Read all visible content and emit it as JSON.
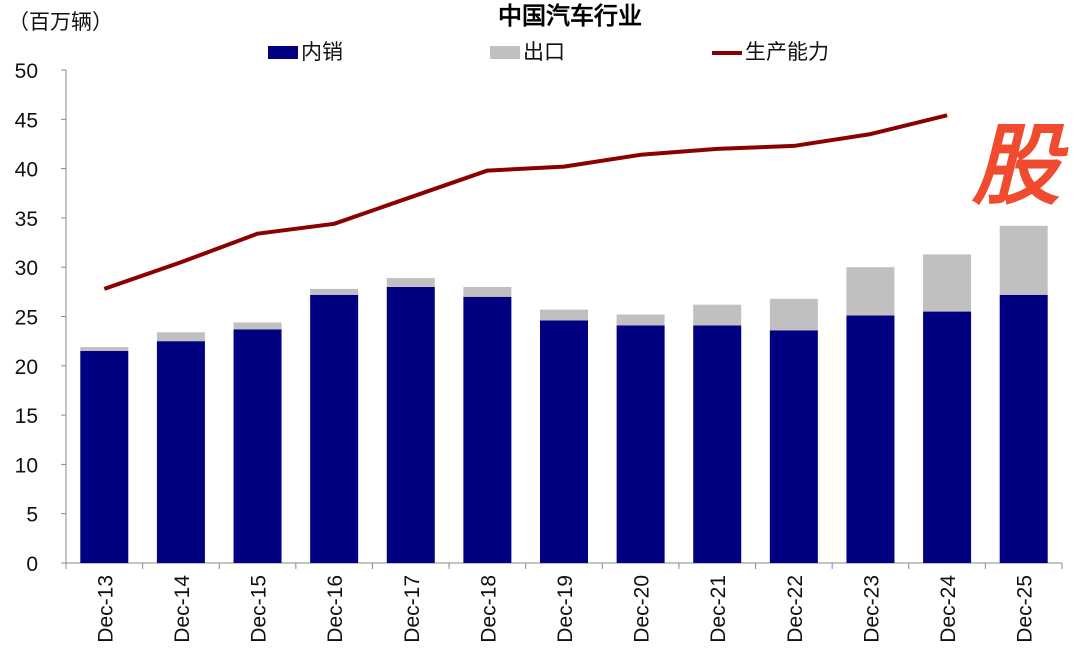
{
  "chart_data": {
    "type": "bar",
    "stacked": true,
    "title": "中国汽车行业",
    "unit_label": "（百万辆）",
    "categories": [
      "Dec-13",
      "Dec-14",
      "Dec-15",
      "Dec-16",
      "Dec-17",
      "Dec-18",
      "Dec-19",
      "Dec-20",
      "Dec-21",
      "Dec-22",
      "Dec-23",
      "Dec-24",
      "Dec-25"
    ],
    "series": [
      {
        "name": "内销",
        "type": "bar",
        "color": "#000080",
        "values": [
          21.5,
          22.5,
          23.7,
          27.2,
          28.0,
          27.0,
          24.6,
          24.1,
          24.1,
          23.6,
          25.1,
          25.5,
          27.2
        ]
      },
      {
        "name": "出口",
        "type": "bar",
        "color": "#c0c0c0",
        "values": [
          0.4,
          0.9,
          0.7,
          0.6,
          0.9,
          1.0,
          1.1,
          1.1,
          2.1,
          3.2,
          4.9,
          5.8,
          7.0
        ]
      },
      {
        "name": "生产能力",
        "type": "line",
        "color": "#8b0000",
        "values": [
          27.8,
          30.5,
          33.4,
          34.4,
          37.1,
          39.8,
          40.2,
          41.4,
          42.0,
          42.3,
          43.5,
          45.4,
          null
        ]
      }
    ],
    "ylim": [
      0,
      50
    ],
    "yticks": [
      "0",
      "5",
      "10",
      "15",
      "20",
      "25",
      "30",
      "35",
      "40",
      "45",
      "50"
    ],
    "grid": false,
    "legend_position": "top"
  },
  "watermark": "股"
}
